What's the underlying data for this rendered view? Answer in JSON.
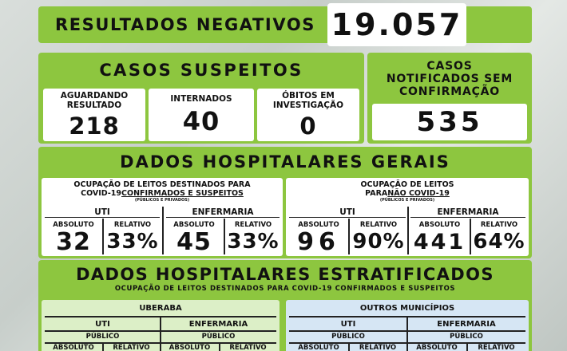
{
  "negativos": {
    "label": "RESULTADOS NEGATIVOS",
    "value": "19.057"
  },
  "suspeitos": {
    "title": "CASOS SUSPEITOS",
    "items": [
      {
        "label": "AGUARDANDO RESULTADO",
        "value": "218"
      },
      {
        "label": "INTERNADOS",
        "value": "40"
      },
      {
        "label": "ÓBITOS EM INVESTIGAÇÃO",
        "value": "0"
      }
    ]
  },
  "notificados": {
    "title": "CASOS NOTIFICADOS SEM CONFIRMAÇÃO",
    "value": "535"
  },
  "hospitalares_gerais": {
    "title": "DADOS HOSPITALARES GERAIS",
    "covid": {
      "heading_line1": "OCUPAÇÃO DE LEITOS DESTINADOS PARA",
      "heading_line2_prefix": "COVID-19 ",
      "heading_line2_bold": "CONFIRMADOS E SUSPEITOS",
      "note": "(PÚBLICOS E PRIVADOS)",
      "uti": {
        "label": "UTI",
        "absoluto_label": "ABSOLUTO",
        "relativo_label": "RELATIVO",
        "absoluto": "32",
        "relativo": "33%"
      },
      "enfermaria": {
        "label": "ENFERMARIA",
        "absoluto_label": "ABSOLUTO",
        "relativo_label": "RELATIVO",
        "absoluto": "45",
        "relativo": "33%"
      }
    },
    "nao_covid": {
      "heading_line1": "OCUPAÇÃO DE LEITOS",
      "heading_line2_prefix": "PARA ",
      "heading_line2_bold": "NÃO COVID-19",
      "note": "(PÚBLICOS E PRIVADOS)",
      "uti": {
        "label": "UTI",
        "absoluto_label": "ABSOLUTO",
        "relativo_label": "RELATIVO",
        "absoluto": "96",
        "relativo": "90%"
      },
      "enfermaria": {
        "label": "ENFERMARIA",
        "absoluto_label": "ABSOLUTO",
        "relativo_label": "RELATIVO",
        "absoluto": "441",
        "relativo": "64%"
      }
    }
  },
  "estratificados": {
    "title": "DADOS HOSPITALARES ESTRATIFICADOS",
    "subtitle": "OCUPAÇÃO DE LEITOS DESTINADOS PARA COVID-19 CONFIRMADOS E SUSPEITOS",
    "uberaba": {
      "name": "UBERABA",
      "uti": "UTI",
      "enfermaria": "ENFERMARIA",
      "publico": "PÚBLICO",
      "absoluto": "ABSOLUTO",
      "relativo": "RELATIVO"
    },
    "outros": {
      "name": "OUTROS MUNICÍPIOS",
      "uti": "UTI",
      "enfermaria": "ENFERMARIA",
      "publico": "PÚBLICO",
      "absoluto": "ABSOLUTO",
      "relativo": "RELATIVO"
    }
  },
  "colors": {
    "green": "#8dc63f",
    "uberaba_bg": "#dcefc7",
    "outros_bg": "#d6e6f4"
  }
}
